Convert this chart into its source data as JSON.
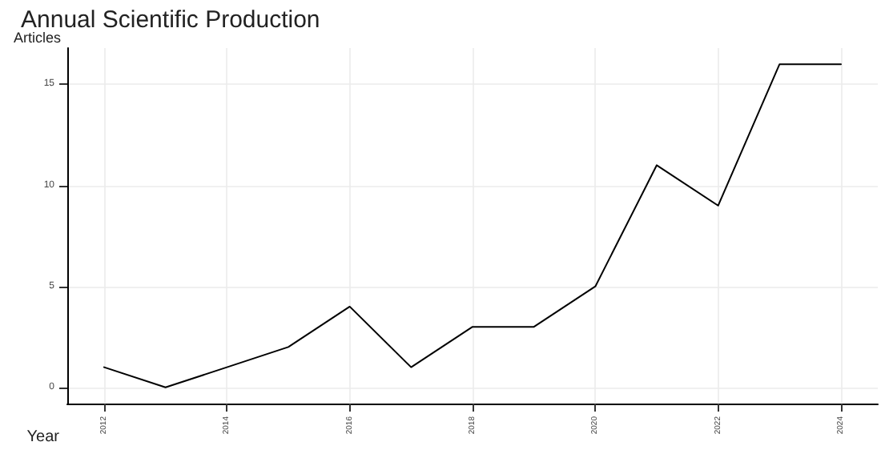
{
  "chart_data": {
    "type": "line",
    "title": "Annual Scientific Production",
    "xlabel": "Year",
    "ylabel": "Articles",
    "x": [
      2012,
      2013,
      2014,
      2015,
      2016,
      2017,
      2018,
      2019,
      2020,
      2021,
      2022,
      2023,
      2024
    ],
    "series": [
      {
        "color": "#000000",
        "values": [
          1,
          0,
          1,
          2,
          4,
          1,
          3,
          3,
          5,
          11,
          9,
          16,
          16
        ]
      }
    ],
    "xlim": [
      2011.4,
      2024.6
    ],
    "xticks": [
      2012,
      2014,
      2016,
      2018,
      2020,
      2022,
      2024
    ],
    "ylim": [
      -0.8,
      16.8
    ],
    "yticks": [
      0,
      5,
      10,
      15
    ],
    "grid": true,
    "marker": "none",
    "line_style": "solid"
  }
}
